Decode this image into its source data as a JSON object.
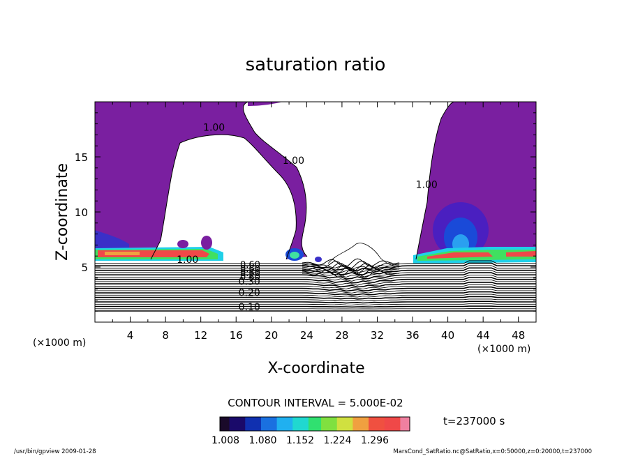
{
  "chart_data": {
    "type": "contour",
    "title": "saturation ratio",
    "xlabel": "X-coordinate",
    "ylabel": "Z-coordinate",
    "x_unit_label": "(×1000 m)",
    "y_unit_label": "(×1000 m)",
    "xlim": [
      0,
      50
    ],
    "ylim": [
      0,
      20
    ],
    "x_ticks": [
      4,
      8,
      12,
      16,
      20,
      24,
      28,
      32,
      36,
      40,
      44,
      48
    ],
    "y_ticks": [
      5,
      10,
      15
    ],
    "contour_interval_label": "CONTOUR INTERVAL = 5.000E-02",
    "time_label": "t=237000 s",
    "colorbar": {
      "tick_values": [
        1.008,
        1.08,
        1.152,
        1.224,
        1.296
      ],
      "tick_labels": [
        "1.008",
        "1.080",
        "1.152",
        "1.224",
        "1.296"
      ]
    },
    "contour_labels": [
      {
        "text": "1.00",
        "x": 13.5,
        "z": 17.5
      },
      {
        "text": "1.00",
        "x": 22.5,
        "z": 14.5
      },
      {
        "text": "1.00",
        "x": 37.6,
        "z": 12.3
      },
      {
        "text": "1.00",
        "x": 10.5,
        "z": 5.5
      },
      {
        "text": "0.30",
        "x": 17.5,
        "z": 3.5
      },
      {
        "text": "0.20",
        "x": 17.5,
        "z": 2.5
      },
      {
        "text": "0.10",
        "x": 17.5,
        "z": 1.2
      }
    ],
    "background_contour_levels": [
      0.1,
      0.2,
      0.3
    ]
  },
  "footer": {
    "left": "/usr/bin/gpview  2009-01-28",
    "right": "MarsCond_SatRatio.nc@SatRatio,x=0:50000,z=0:20000,t=237000"
  },
  "colors": {
    "fill_main": "#7a1fa0",
    "fill_deep": "#5b1fb0",
    "fill_blue": "#1a4ad8",
    "fill_cyan": "#20d0e8",
    "fill_green": "#40e060",
    "fill_red": "#f04848"
  }
}
